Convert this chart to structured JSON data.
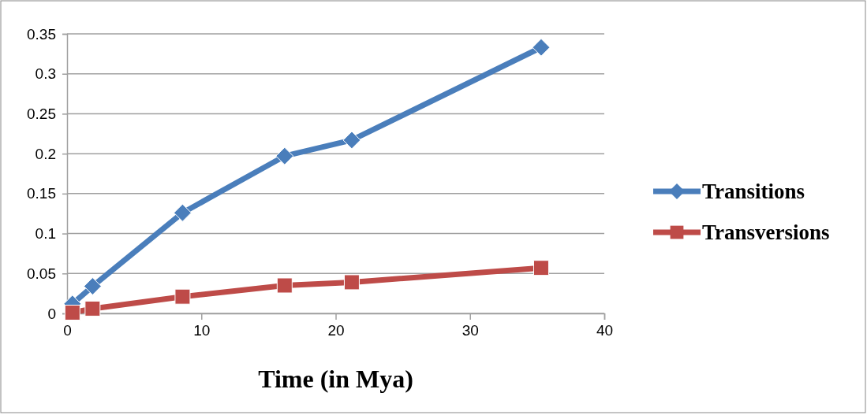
{
  "chart_data": {
    "type": "line",
    "xlabel": "Time (in Mya)",
    "xlim": [
      0,
      40
    ],
    "xticks": [
      0,
      10,
      20,
      30,
      40
    ],
    "ylim": [
      0,
      0.35
    ],
    "yticks": [
      0,
      0.05,
      0.1,
      0.15,
      0.2,
      0.25,
      0.3,
      0.35
    ],
    "grid": "y",
    "legend": "right",
    "series": [
      {
        "name": "Transitions",
        "color": "#4a7ebb",
        "marker": "diamond",
        "x": [
          0.4,
          1.9,
          8.6,
          16.2,
          21.2,
          35.3
        ],
        "values": [
          0.012,
          0.034,
          0.126,
          0.197,
          0.217,
          0.333
        ]
      },
      {
        "name": "Transversions",
        "color": "#be4b48",
        "marker": "square",
        "x": [
          0.4,
          1.9,
          8.6,
          16.2,
          21.2,
          35.3
        ],
        "values": [
          0.001,
          0.006,
          0.021,
          0.035,
          0.039,
          0.057
        ]
      }
    ]
  }
}
